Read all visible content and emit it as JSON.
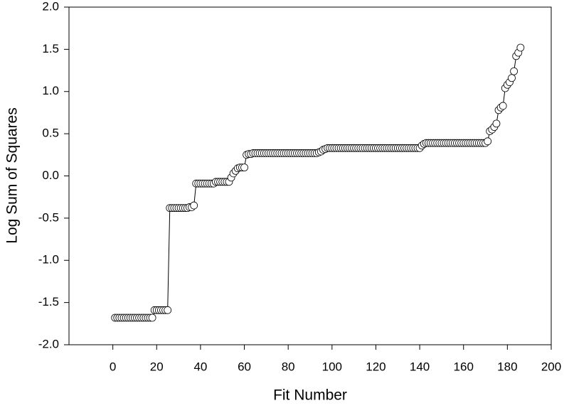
{
  "chart_data": {
    "type": "line",
    "xlabel": "Fit Number",
    "ylabel": "Log Sum of Squares",
    "xlim": [
      -20,
      200
    ],
    "xticks": [
      0,
      20,
      40,
      60,
      80,
      100,
      120,
      140,
      160,
      180,
      200
    ],
    "ylim": [
      -2,
      2
    ],
    "yticks": [
      {
        "value": -2,
        "label": "-2.0"
      },
      {
        "value": -1.5,
        "label": "-1.5"
      },
      {
        "value": -1,
        "label": "-1.0"
      },
      {
        "value": -0.5,
        "label": "-0.5"
      },
      {
        "value": 0,
        "label": "0.0"
      },
      {
        "value": 0.5,
        "label": "0.5"
      },
      {
        "value": 1,
        "label": "1.0"
      },
      {
        "value": 1.5,
        "label": "1.5"
      },
      {
        "value": 2,
        "label": "2.0"
      }
    ],
    "color": "#000000",
    "x": [
      1,
      2,
      3,
      4,
      5,
      6,
      7,
      8,
      9,
      10,
      11,
      12,
      13,
      14,
      15,
      16,
      17,
      18,
      19,
      20,
      21,
      22,
      23,
      24,
      25,
      26,
      27,
      28,
      29,
      30,
      31,
      32,
      33,
      34,
      35,
      36,
      37,
      38,
      39,
      40,
      41,
      42,
      43,
      44,
      45,
      46,
      47,
      48,
      49,
      50,
      51,
      52,
      53,
      54,
      55,
      56,
      57,
      58,
      59,
      60,
      61,
      62,
      63,
      64,
      65,
      66,
      67,
      68,
      69,
      70,
      71,
      72,
      73,
      74,
      75,
      76,
      77,
      78,
      79,
      80,
      81,
      82,
      83,
      84,
      85,
      86,
      87,
      88,
      89,
      90,
      91,
      92,
      93,
      94,
      95,
      96,
      97,
      98,
      99,
      100,
      101,
      102,
      103,
      104,
      105,
      106,
      107,
      108,
      109,
      110,
      111,
      112,
      113,
      114,
      115,
      116,
      117,
      118,
      119,
      120,
      121,
      122,
      123,
      124,
      125,
      126,
      127,
      128,
      129,
      130,
      131,
      132,
      133,
      134,
      135,
      136,
      137,
      138,
      139,
      140,
      141,
      142,
      143,
      144,
      145,
      146,
      147,
      148,
      149,
      150,
      151,
      152,
      153,
      154,
      155,
      156,
      157,
      158,
      159,
      160,
      161,
      162,
      163,
      164,
      165,
      166,
      167,
      168,
      169,
      170,
      171,
      172,
      173,
      174,
      175,
      176,
      177,
      178,
      179,
      180,
      181,
      182,
      183,
      184,
      185,
      186
    ],
    "values": [
      -1.68,
      -1.68,
      -1.68,
      -1.68,
      -1.68,
      -1.68,
      -1.68,
      -1.68,
      -1.68,
      -1.68,
      -1.68,
      -1.68,
      -1.68,
      -1.68,
      -1.68,
      -1.68,
      -1.68,
      -1.68,
      -1.59,
      -1.59,
      -1.59,
      -1.59,
      -1.59,
      -1.59,
      -1.59,
      -0.38,
      -0.38,
      -0.38,
      -0.38,
      -0.38,
      -0.38,
      -0.38,
      -0.38,
      -0.38,
      -0.37,
      -0.37,
      -0.35,
      -0.09,
      -0.09,
      -0.09,
      -0.09,
      -0.09,
      -0.09,
      -0.09,
      -0.09,
      -0.09,
      -0.07,
      -0.07,
      -0.07,
      -0.07,
      -0.07,
      -0.07,
      -0.07,
      -0.02,
      0.03,
      0.06,
      0.09,
      0.1,
      0.1,
      0.1,
      0.25,
      0.26,
      0.26,
      0.27,
      0.27,
      0.27,
      0.27,
      0.27,
      0.27,
      0.27,
      0.27,
      0.27,
      0.27,
      0.27,
      0.27,
      0.27,
      0.27,
      0.27,
      0.27,
      0.27,
      0.27,
      0.27,
      0.27,
      0.27,
      0.27,
      0.27,
      0.27,
      0.27,
      0.27,
      0.27,
      0.27,
      0.27,
      0.27,
      0.28,
      0.29,
      0.31,
      0.32,
      0.33,
      0.33,
      0.33,
      0.33,
      0.33,
      0.33,
      0.33,
      0.33,
      0.33,
      0.33,
      0.33,
      0.33,
      0.33,
      0.33,
      0.33,
      0.33,
      0.33,
      0.33,
      0.33,
      0.33,
      0.33,
      0.33,
      0.33,
      0.33,
      0.33,
      0.33,
      0.33,
      0.33,
      0.33,
      0.33,
      0.33,
      0.33,
      0.33,
      0.33,
      0.33,
      0.33,
      0.33,
      0.33,
      0.33,
      0.33,
      0.33,
      0.33,
      0.33,
      0.36,
      0.38,
      0.39,
      0.39,
      0.39,
      0.39,
      0.39,
      0.39,
      0.39,
      0.39,
      0.39,
      0.39,
      0.39,
      0.39,
      0.39,
      0.39,
      0.39,
      0.39,
      0.39,
      0.39,
      0.39,
      0.39,
      0.39,
      0.39,
      0.39,
      0.39,
      0.39,
      0.39,
      0.39,
      0.39,
      0.41,
      0.53,
      0.55,
      0.58,
      0.62,
      0.78,
      0.81,
      0.83,
      1.04,
      1.08,
      1.11,
      1.16,
      1.24,
      1.42,
      1.46,
      1.52
    ]
  }
}
